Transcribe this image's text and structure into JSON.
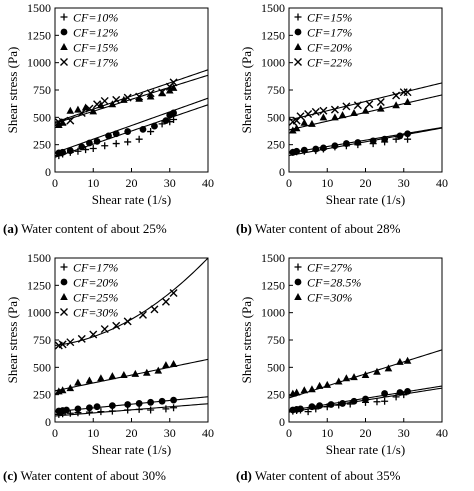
{
  "chart_data": [
    {
      "type": "scatter",
      "panel_letter": "(a)",
      "caption": "Water content of about 25%",
      "xlabel": "Shear rate (1/s)",
      "ylabel": "Shear stress (Pa)",
      "xlim": [
        0,
        40
      ],
      "ylim": [
        0,
        1500
      ],
      "x_ticks": [
        0,
        10,
        20,
        30,
        40
      ],
      "y_ticks": [
        0,
        250,
        500,
        750,
        1000,
        1250,
        1500
      ],
      "legend_position": "top-left",
      "series": [
        {
          "name": "CF=10%",
          "marker": "plus",
          "points": [
            [
              1,
              150
            ],
            [
              2,
              165
            ],
            [
              4,
              180
            ],
            [
              6,
              190
            ],
            [
              8,
              205
            ],
            [
              10,
              215
            ],
            [
              13,
              240
            ],
            [
              16,
              260
            ],
            [
              19,
              275
            ],
            [
              22,
              300
            ],
            [
              25,
              370
            ],
            [
              28,
              440
            ],
            [
              30,
              460
            ],
            [
              31,
              480
            ]
          ],
          "fit": {
            "kind": "linear",
            "y0": 135,
            "slope": 12.0
          }
        },
        {
          "name": "CF=12%",
          "marker": "circle",
          "points": [
            [
              1,
              175
            ],
            [
              2,
              180
            ],
            [
              4,
              195
            ],
            [
              7,
              230
            ],
            [
              9,
              265
            ],
            [
              11,
              280
            ],
            [
              14,
              330
            ],
            [
              16,
              350
            ],
            [
              19,
              370
            ],
            [
              23,
              390
            ],
            [
              26,
              420
            ],
            [
              29,
              470
            ],
            [
              30,
              520
            ],
            [
              31,
              540
            ]
          ],
          "fit": {
            "kind": "linear",
            "y0": 175,
            "slope": 12.5
          }
        },
        {
          "name": "CF=15%",
          "marker": "triangle",
          "points": [
            [
              1,
              430
            ],
            [
              2,
              450
            ],
            [
              4,
              560
            ],
            [
              6,
              570
            ],
            [
              8,
              590
            ],
            [
              10,
              555
            ],
            [
              12,
              610
            ],
            [
              15,
              620
            ],
            [
              18,
              660
            ],
            [
              22,
              670
            ],
            [
              25,
              690
            ],
            [
              28,
              720
            ],
            [
              30,
              745
            ],
            [
              31,
              770
            ]
          ],
          "fit": {
            "kind": "linear",
            "y0": 445,
            "slope": 11.0
          }
        },
        {
          "name": "CF=17%",
          "marker": "x",
          "points": [
            [
              1,
              455
            ],
            [
              2,
              460
            ],
            [
              4,
              470
            ],
            [
              7,
              540
            ],
            [
              9,
              580
            ],
            [
              11,
              620
            ],
            [
              13,
              650
            ],
            [
              16,
              660
            ],
            [
              19,
              680
            ],
            [
              22,
              690
            ],
            [
              25,
              720
            ],
            [
              28,
              730
            ],
            [
              30,
              780
            ],
            [
              31,
              820
            ]
          ],
          "fit": {
            "kind": "linear",
            "y0": 455,
            "slope": 12.0
          }
        }
      ]
    },
    {
      "type": "scatter",
      "panel_letter": "(b)",
      "caption": "Water content of about 28%",
      "xlabel": "Shear rate (1/s)",
      "ylabel": "Shear stress (Pa)",
      "xlim": [
        0,
        40
      ],
      "ylim": [
        0,
        1500
      ],
      "x_ticks": [
        0,
        10,
        20,
        30,
        40
      ],
      "y_ticks": [
        0,
        250,
        500,
        750,
        1000,
        1250,
        1500
      ],
      "legend_position": "top-left",
      "series": [
        {
          "name": "CF=15%",
          "marker": "plus",
          "points": [
            [
              1,
              180
            ],
            [
              2,
              185
            ],
            [
              4,
              190
            ],
            [
              7,
              195
            ],
            [
              9,
              210
            ],
            [
              12,
              230
            ],
            [
              15,
              240
            ],
            [
              18,
              250
            ],
            [
              22,
              260
            ],
            [
              25,
              275
            ],
            [
              28,
              300
            ],
            [
              31,
              300
            ]
          ],
          "fit": {
            "kind": "linear",
            "y0": 150,
            "slope": 6.3
          }
        },
        {
          "name": "CF=17%",
          "marker": "circle",
          "points": [
            [
              1,
              180
            ],
            [
              2,
              190
            ],
            [
              4,
              200
            ],
            [
              7,
              210
            ],
            [
              9,
              220
            ],
            [
              12,
              240
            ],
            [
              15,
              260
            ],
            [
              18,
              270
            ],
            [
              22,
              285
            ],
            [
              25,
              300
            ],
            [
              29,
              330
            ],
            [
              31,
              350
            ]
          ],
          "fit": {
            "kind": "linear",
            "y0": 175,
            "slope": 5.8
          }
        },
        {
          "name": "CF=20%",
          "marker": "triangle",
          "points": [
            [
              1,
              380
            ],
            [
              2,
              400
            ],
            [
              4,
              450
            ],
            [
              6,
              440
            ],
            [
              9,
              500
            ],
            [
              12,
              500
            ],
            [
              14,
              520
            ],
            [
              17,
              540
            ],
            [
              20,
              560
            ],
            [
              24,
              580
            ],
            [
              28,
              610
            ],
            [
              31,
              640
            ]
          ],
          "fit": {
            "kind": "linear",
            "y0": 385,
            "slope": 8.0
          }
        },
        {
          "name": "CF=22%",
          "marker": "x",
          "points": [
            [
              1,
              460
            ],
            [
              2,
              470
            ],
            [
              3,
              510
            ],
            [
              5,
              530
            ],
            [
              7,
              550
            ],
            [
              9,
              560
            ],
            [
              12,
              570
            ],
            [
              15,
              600
            ],
            [
              18,
              610
            ],
            [
              21,
              620
            ],
            [
              24,
              640
            ],
            [
              28,
              700
            ],
            [
              30,
              730
            ],
            [
              31,
              730
            ]
          ],
          "fit": {
            "kind": "linear",
            "y0": 475,
            "slope": 8.5
          }
        }
      ]
    },
    {
      "type": "scatter",
      "panel_letter": "(c)",
      "caption": "Water content of about 30%",
      "xlabel": "Shear rate (1/s)",
      "ylabel": "Shear stress (Pa)",
      "xlim": [
        0,
        40
      ],
      "ylim": [
        0,
        1500
      ],
      "x_ticks": [
        0,
        10,
        20,
        30,
        40
      ],
      "y_ticks": [
        0,
        250,
        500,
        750,
        1000,
        1250,
        1500
      ],
      "legend_position": "top-left",
      "series": [
        {
          "name": "CF=17%",
          "marker": "plus",
          "points": [
            [
              1,
              70
            ],
            [
              2,
              75
            ],
            [
              4,
              80
            ],
            [
              6,
              85
            ],
            [
              9,
              90
            ],
            [
              12,
              95
            ],
            [
              15,
              100
            ],
            [
              19,
              110
            ],
            [
              22,
              115
            ],
            [
              25,
              110
            ],
            [
              29,
              120
            ],
            [
              31,
              130
            ]
          ],
          "fit": {
            "kind": "linear",
            "y0": 55,
            "slope": 2.8
          }
        },
        {
          "name": "CF=20%",
          "marker": "circle",
          "points": [
            [
              1,
              100
            ],
            [
              2,
              105
            ],
            [
              3,
              110
            ],
            [
              6,
              120
            ],
            [
              9,
              130
            ],
            [
              11,
              140
            ],
            [
              15,
              150
            ],
            [
              19,
              160
            ],
            [
              22,
              170
            ],
            [
              25,
              180
            ],
            [
              28,
              190
            ],
            [
              31,
              200
            ]
          ],
          "fit": {
            "kind": "linear",
            "y0": 95,
            "slope": 3.4
          }
        },
        {
          "name": "CF=25%",
          "marker": "triangle",
          "points": [
            [
              1,
              280
            ],
            [
              2,
              290
            ],
            [
              4,
              310
            ],
            [
              6,
              360
            ],
            [
              9,
              380
            ],
            [
              12,
              400
            ],
            [
              15,
              420
            ],
            [
              18,
              430
            ],
            [
              21,
              440
            ],
            [
              24,
              450
            ],
            [
              27,
              470
            ],
            [
              29,
              520
            ],
            [
              31,
              530
            ]
          ],
          "fit": {
            "kind": "linear",
            "y0": 285,
            "slope": 7.2
          }
        },
        {
          "name": "CF=30%",
          "marker": "x",
          "points": [
            [
              1,
              700
            ],
            [
              2,
              710
            ],
            [
              4,
              730
            ],
            [
              7,
              760
            ],
            [
              10,
              800
            ],
            [
              13,
              850
            ],
            [
              16,
              880
            ],
            [
              19,
              920
            ],
            [
              23,
              980
            ],
            [
              26,
              1030
            ],
            [
              29,
              1100
            ],
            [
              31,
              1180
            ]
          ],
          "fit": {
            "kind": "quadratic",
            "a": 0.4,
            "b": 4.0,
            "c": 700
          }
        }
      ]
    },
    {
      "type": "scatter",
      "panel_letter": "(d)",
      "caption": "Water content of about 35%",
      "xlabel": "Shear rate (1/s)",
      "ylabel": "Shear stress (Pa)",
      "xlim": [
        0,
        40
      ],
      "ylim": [
        0,
        1500
      ],
      "x_ticks": [
        0,
        10,
        20,
        30,
        40
      ],
      "y_ticks": [
        0,
        250,
        500,
        750,
        1000,
        1250,
        1500
      ],
      "legend_position": "top-left",
      "series": [
        {
          "name": "CF=27%",
          "marker": "plus",
          "points": [
            [
              1,
              100
            ],
            [
              2,
              105
            ],
            [
              3,
              110
            ],
            [
              5,
              95
            ],
            [
              7,
              120
            ],
            [
              10,
              140
            ],
            [
              13,
              155
            ],
            [
              16,
              165
            ],
            [
              20,
              180
            ],
            [
              23,
              185
            ],
            [
              25,
              190
            ],
            [
              28,
              230
            ],
            [
              30,
              250
            ]
          ],
          "fit": {
            "kind": "linear",
            "y0": 90,
            "slope": 5.5
          }
        },
        {
          "name": "CF=28.5%",
          "marker": "circle",
          "points": [
            [
              1,
              110
            ],
            [
              2,
              115
            ],
            [
              3,
              120
            ],
            [
              6,
              140
            ],
            [
              8,
              150
            ],
            [
              11,
              160
            ],
            [
              14,
              170
            ],
            [
              17,
              190
            ],
            [
              20,
              210
            ],
            [
              25,
              260
            ],
            [
              29,
              270
            ],
            [
              31,
              280
            ]
          ],
          "fit": {
            "kind": "linear",
            "y0": 105,
            "slope": 5.6
          }
        },
        {
          "name": "CF=30%",
          "marker": "triangle",
          "points": [
            [
              1,
              260
            ],
            [
              2,
              270
            ],
            [
              4,
              290
            ],
            [
              6,
              300
            ],
            [
              8,
              330
            ],
            [
              10,
              340
            ],
            [
              13,
              370
            ],
            [
              15,
              400
            ],
            [
              17,
              410
            ],
            [
              20,
              430
            ],
            [
              23,
              460
            ],
            [
              26,
              490
            ],
            [
              29,
              550
            ],
            [
              31,
              560
            ]
          ],
          "fit": {
            "kind": "linear",
            "y0": 220,
            "slope": 11.0
          }
        }
      ]
    }
  ]
}
